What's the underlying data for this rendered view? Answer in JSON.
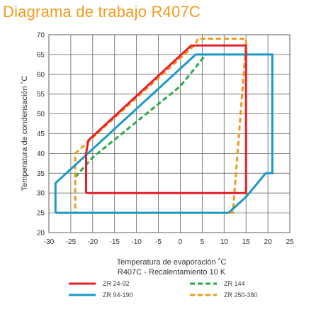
{
  "title": "Diagrama  de  trabajo  R407C",
  "chart_data": {
    "type": "line",
    "xlabel": "Temperatura  de evaporación  ˚C",
    "xlabel2": "R407C   - Recalentamiento   10 K",
    "ylabel": "Temperatura  de condensación  ˚C",
    "xlim": [
      -30,
      25
    ],
    "ylim": [
      20,
      70
    ],
    "xticks": [
      "-30",
      "-25",
      "-20",
      "-15",
      "-10",
      "-5",
      "0",
      "5",
      "10",
      "15",
      "20",
      "25"
    ],
    "yticks": [
      "20",
      "25",
      "30",
      "35",
      "40",
      "45",
      "50",
      "55",
      "60",
      "65",
      "70"
    ],
    "grid": true,
    "legend_position": "bottom",
    "series": [
      {
        "name": "ZR 24-92",
        "color": "#e3202a",
        "dash": false,
        "points": [
          [
            -21.5,
            30
          ],
          [
            -21.5,
            40
          ],
          [
            -21,
            43.3
          ],
          [
            2.5,
            67.3
          ],
          [
            15,
            67.3
          ],
          [
            15,
            30
          ],
          [
            -21.5,
            30
          ]
        ]
      },
      {
        "name": "ZR 94-190",
        "color": "#1a9ac6",
        "dash": false,
        "points": [
          [
            -28.5,
            25
          ],
          [
            -10,
            25
          ],
          [
            11,
            25
          ],
          [
            15,
            29
          ],
          [
            19.5,
            35
          ],
          [
            21,
            35
          ],
          [
            21,
            65
          ],
          [
            3.5,
            65
          ],
          [
            -28.5,
            32.5
          ],
          [
            -28.5,
            25
          ]
        ]
      },
      {
        "name": "ZR 144",
        "color": "#2da84a",
        "dash": true,
        "points": [
          [
            -24,
            34
          ],
          [
            -20,
            39
          ],
          [
            0,
            57
          ],
          [
            6,
            65.2
          ]
        ]
      },
      {
        "name": "ZR 250-380",
        "color": "#f39a1e",
        "dash": true,
        "points": [
          [
            -24,
            34
          ],
          [
            -24,
            40
          ],
          [
            -22,
            42
          ],
          [
            3.5,
            67.6
          ],
          [
            4,
            69
          ],
          [
            15,
            69
          ],
          [
            15,
            67.5
          ],
          [
            12,
            25
          ],
          [
            -24,
            25
          ],
          [
            -24,
            34
          ]
        ]
      }
    ]
  }
}
